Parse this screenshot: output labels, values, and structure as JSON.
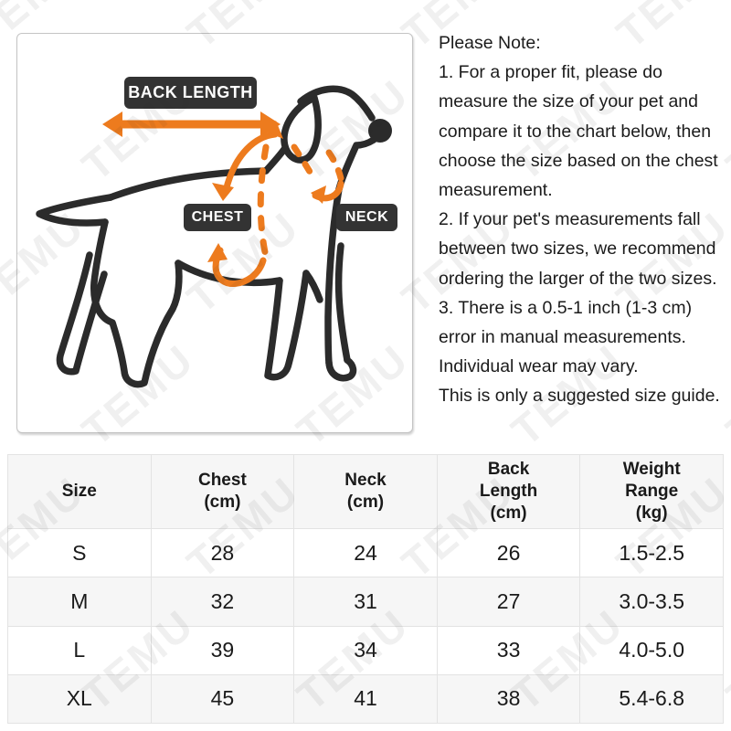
{
  "diagram": {
    "labels": {
      "back_length": "BACK LENGTH",
      "chest": "CHEST",
      "neck": "NECK"
    }
  },
  "notes": {
    "lines": [
      "Please Note:",
      "1. For a proper fit, please do",
      "measure the size of your pet and",
      "compare it to the chart below, then",
      "choose the size based on the chest",
      "measurement.",
      "2. If your pet's measurements fall",
      "between two sizes, we recommend",
      "ordering the larger of the two sizes.",
      "3. There is a 0.5-1 inch (1-3 cm)",
      "error in manual measurements.",
      "Individual wear may vary.",
      "This is only a suggested size guide."
    ]
  },
  "table": {
    "headers": [
      "Size",
      "Chest\n(cm)",
      "Neck\n(cm)",
      "Back\nLength\n(cm)",
      "Weight\nRange\n(kg)"
    ],
    "rows": [
      {
        "cells": [
          "S",
          "28",
          "24",
          "26",
          "1.5-2.5"
        ]
      },
      {
        "cells": [
          "M",
          "32",
          "31",
          "27",
          "3.0-3.5"
        ]
      },
      {
        "cells": [
          "L",
          "39",
          "34",
          "33",
          "4.0-5.0"
        ]
      },
      {
        "cells": [
          "XL",
          "45",
          "41",
          "38",
          "5.4-6.8"
        ]
      }
    ]
  },
  "watermark": {
    "text": "TEMU"
  },
  "colors": {
    "accent_orange": "#ED7B1E",
    "label_dark": "#333333",
    "dog_outline": "#2b2b2b",
    "table_border": "#e3e3e3",
    "stripe_bg": "#f6f6f6"
  }
}
